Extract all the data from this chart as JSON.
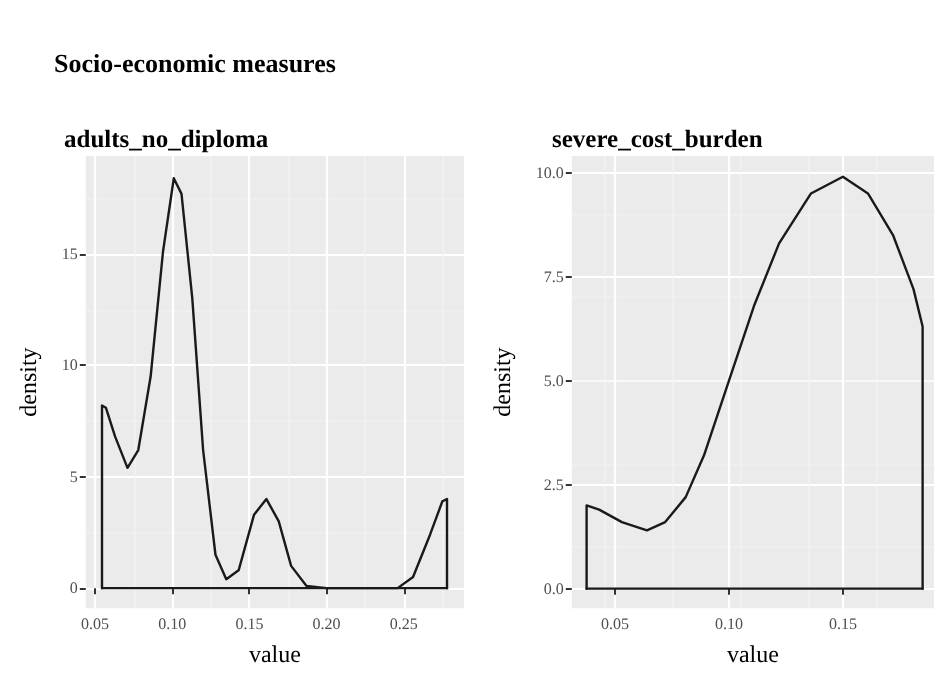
{
  "chart_data": [
    {
      "type": "line",
      "title": "Socio-economic measures",
      "subtitle": "adults_no_diploma",
      "xlabel": "value",
      "ylabel": "density",
      "marker": "none",
      "line_style": "solid",
      "grid": true,
      "xlim": [
        0.044,
        0.289
      ],
      "ylim": [
        -0.9,
        19.4
      ],
      "xticks": [
        {
          "value": 0.05,
          "label": "0.05"
        },
        {
          "value": 0.1,
          "label": "0.10"
        },
        {
          "value": 0.15,
          "label": "0.15"
        },
        {
          "value": 0.2,
          "label": "0.20"
        },
        {
          "value": 0.25,
          "label": "0.25"
        }
      ],
      "yticks": [
        0,
        5,
        10,
        15
      ],
      "series": [
        {
          "color": "#1a1a1a",
          "x": [
            0.0545,
            0.0545,
            0.057,
            0.063,
            0.071,
            0.078,
            0.086,
            0.094,
            0.101,
            0.106,
            0.113,
            0.12,
            0.128,
            0.135,
            0.143,
            0.153,
            0.161,
            0.169,
            0.177,
            0.187,
            0.2,
            0.246,
            0.256,
            0.267,
            0.275,
            0.278,
            0.278
          ],
          "values": [
            0,
            8.2,
            8.1,
            6.8,
            5.4,
            6.2,
            9.5,
            15.1,
            18.4,
            17.7,
            13.0,
            6.2,
            1.5,
            0.4,
            0.8,
            3.3,
            4.0,
            3.0,
            1.0,
            0.1,
            0,
            0,
            0.5,
            2.4,
            3.9,
            4.0,
            0
          ]
        },
        {
          "color": "#1a1a1a",
          "x": [
            0.0545,
            0.278
          ],
          "values": [
            0,
            0
          ]
        }
      ]
    },
    {
      "type": "line",
      "subtitle": "severe_cost_burden",
      "xlabel": "value",
      "ylabel": "density",
      "marker": "none",
      "line_style": "solid",
      "grid": true,
      "xlim": [
        0.031,
        0.19
      ],
      "ylim": [
        -0.47,
        10.4
      ],
      "xticks": [
        {
          "value": 0.05,
          "label": "0.05"
        },
        {
          "value": 0.1,
          "label": "0.10"
        },
        {
          "value": 0.15,
          "label": "0.15"
        }
      ],
      "yticks": [
        {
          "value": 0,
          "label": "0.0"
        },
        {
          "value": 2.5,
          "label": "2.5"
        },
        {
          "value": 5,
          "label": "5.0"
        },
        {
          "value": 7.5,
          "label": "7.5"
        },
        {
          "value": 10,
          "label": "10.0"
        }
      ],
      "series": [
        {
          "color": "#1a1a1a",
          "x": [
            0.0375,
            0.0375,
            0.043,
            0.053,
            0.064,
            0.072,
            0.081,
            0.089,
            0.1,
            0.111,
            0.122,
            0.136,
            0.15,
            0.161,
            0.172,
            0.181,
            0.185,
            0.185
          ],
          "values": [
            0,
            2.0,
            1.9,
            1.6,
            1.4,
            1.6,
            2.2,
            3.2,
            5.0,
            6.8,
            8.3,
            9.5,
            9.9,
            9.5,
            8.5,
            7.2,
            6.3,
            0
          ]
        },
        {
          "color": "#1a1a1a",
          "x": [
            0.0375,
            0.185
          ],
          "values": [
            0,
            0
          ]
        }
      ]
    }
  ]
}
